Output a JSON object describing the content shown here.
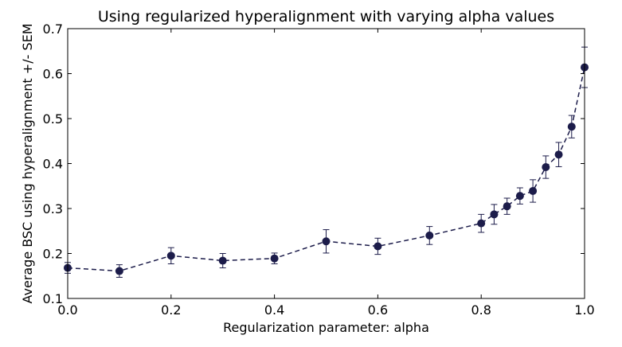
{
  "chart_data": {
    "type": "line",
    "title": "Using regularized hyperalignment with varying alpha values",
    "xlabel": "Regularization parameter: alpha",
    "ylabel": "Average BSC using hyperalignment +/- SEM",
    "xlim": [
      0.0,
      1.0
    ],
    "ylim": [
      0.1,
      0.7
    ],
    "xticks": [
      "0.0",
      "0.2",
      "0.4",
      "0.6",
      "0.8",
      "1.0"
    ],
    "yticks": [
      "0.1",
      "0.2",
      "0.3",
      "0.4",
      "0.5",
      "0.6",
      "0.7"
    ],
    "grid": false,
    "line_style": "dashed",
    "marker": "circle",
    "color": "#1c1c4a",
    "series": [
      {
        "x": [
          0.0,
          0.1,
          0.2,
          0.3,
          0.4,
          0.5,
          0.6,
          0.7,
          0.8,
          0.825,
          0.85,
          0.875,
          0.9,
          0.925,
          0.95,
          0.975,
          1.0
        ],
        "y": [
          0.168,
          0.161,
          0.195,
          0.184,
          0.189,
          0.227,
          0.216,
          0.24,
          0.267,
          0.287,
          0.305,
          0.328,
          0.339,
          0.392,
          0.42,
          0.482,
          0.614
        ],
        "err": [
          0.012,
          0.014,
          0.018,
          0.016,
          0.012,
          0.026,
          0.018,
          0.02,
          0.02,
          0.022,
          0.018,
          0.018,
          0.025,
          0.025,
          0.027,
          0.025,
          0.045
        ]
      }
    ]
  }
}
